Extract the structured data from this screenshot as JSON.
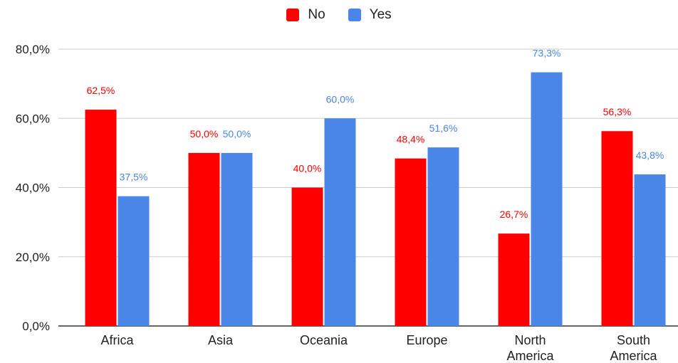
{
  "legend": {
    "no_label": "No",
    "yes_label": "Yes"
  },
  "colors": {
    "no": "#ff0000",
    "yes": "#4a86e8",
    "grid": "#cccccc",
    "axis": "#333333",
    "text": "#222222"
  },
  "chart_data": {
    "type": "bar",
    "categories": [
      "Africa",
      "Asia",
      "Oceania",
      "Europe",
      "North America",
      "South America"
    ],
    "series": [
      {
        "name": "No",
        "values": [
          62.5,
          50.0,
          40.0,
          48.4,
          26.7,
          56.3
        ],
        "labels": [
          "62,5%",
          "50,0%",
          "40,0%",
          "48,4%",
          "26,7%",
          "56,3%"
        ]
      },
      {
        "name": "Yes",
        "values": [
          37.5,
          50.0,
          60.0,
          51.6,
          73.3,
          43.8
        ],
        "labels": [
          "37,5%",
          "50,0%",
          "60,0%",
          "51,6%",
          "73,3%",
          "43,8%"
        ]
      }
    ],
    "yticks": [
      0,
      20,
      40,
      60,
      80
    ],
    "ytick_labels": [
      "0,0%",
      "20,0%",
      "40,0%",
      "60,0%",
      "80,0%"
    ],
    "ylim": [
      0,
      80
    ],
    "grid": true,
    "legend_position": "top-center",
    "title": "",
    "xlabel": "",
    "ylabel": ""
  }
}
